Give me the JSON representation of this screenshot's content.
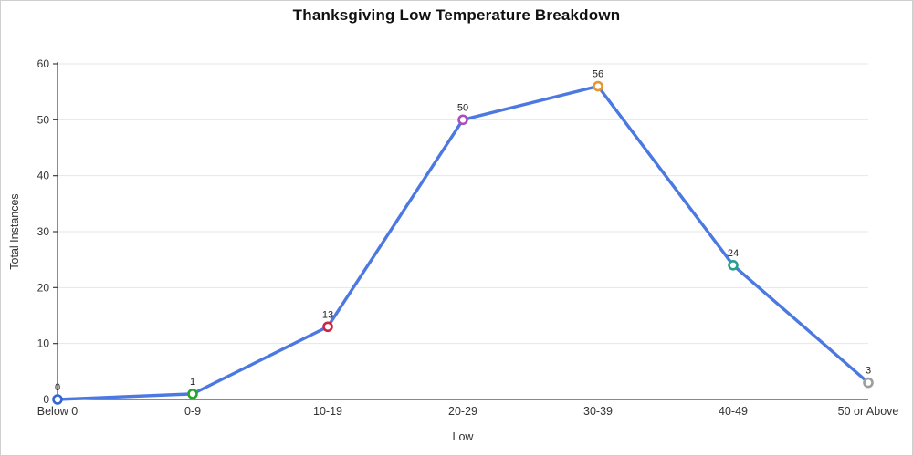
{
  "chart_data": {
    "type": "line",
    "title": "Thanksgiving Low Temperature Breakdown",
    "xlabel": "Low",
    "ylabel": "Total Instances",
    "categories": [
      "Below 0",
      "0-9",
      "10-19",
      "20-29",
      "30-39",
      "40-49",
      "50 or Above"
    ],
    "values": [
      0,
      1,
      13,
      50,
      56,
      24,
      3
    ],
    "data_labels": [
      "0",
      "1",
      "13",
      "50",
      "56",
      "24",
      "3"
    ],
    "ylim": [
      0,
      60
    ],
    "ytick_step": 10,
    "ytick_labels": [
      "0",
      "10",
      "20",
      "30",
      "40",
      "50",
      "60"
    ],
    "grid": "horizontal",
    "legend_position": "none",
    "colors": {
      "line": "#4b79e1",
      "marker_fill": "#ffffff",
      "marker_strokes": [
        "#3465d0",
        "#28a428",
        "#cc2244",
        "#a94fc0",
        "#e8962e",
        "#26a08e",
        "#9e9e9e"
      ],
      "gridline": "#e6e6e6",
      "axis": "#404040",
      "tick_text": "#333333",
      "title_text": "#111111",
      "border": "#cfcfcf"
    }
  }
}
